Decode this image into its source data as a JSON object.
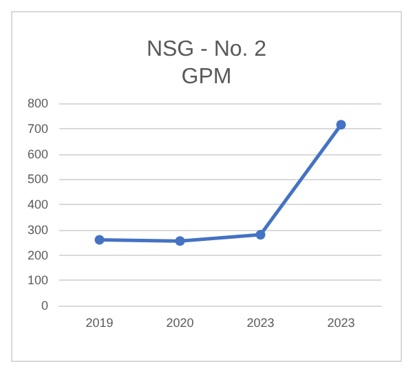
{
  "chart_data": {
    "type": "line",
    "title": "NSG - No. 2\nGPM",
    "categories": [
      "2019",
      "2020",
      "2023",
      "2023"
    ],
    "series": [
      {
        "color": "#4472c4",
        "values": [
          260,
          255,
          280,
          715
        ]
      }
    ],
    "ylim": [
      0,
      800
    ],
    "yticks": [
      0,
      100,
      200,
      300,
      400,
      500,
      600,
      700,
      800
    ],
    "grid": "y",
    "marker": "circle"
  }
}
